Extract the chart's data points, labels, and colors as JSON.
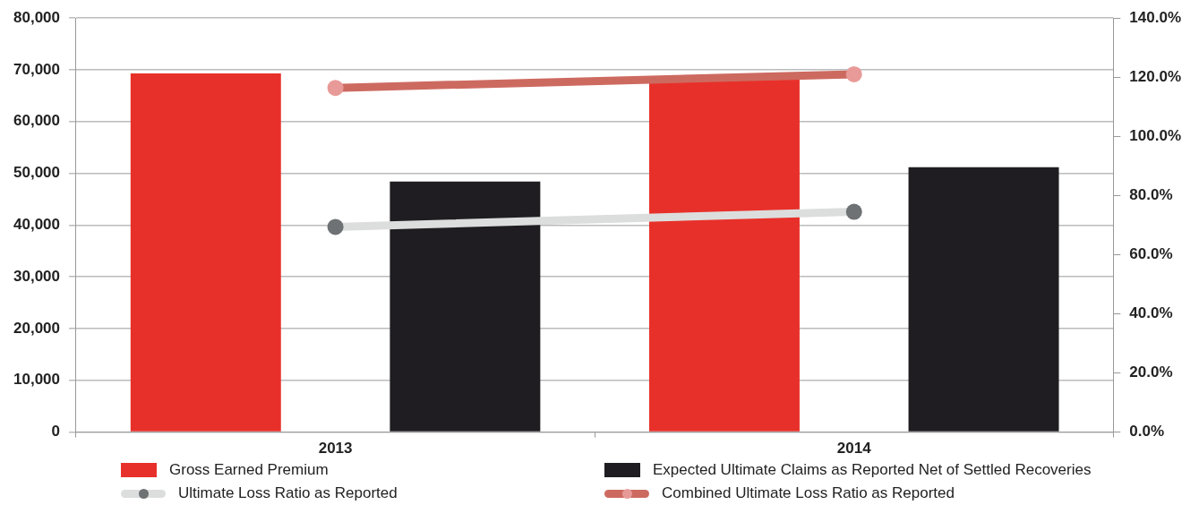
{
  "chart_data": {
    "type": "bar",
    "categories": [
      "2013",
      "2014"
    ],
    "series": [
      {
        "name": "Gross Earned Premium",
        "color": "#e8302a",
        "values": [
          69300,
          68600
        ]
      },
      {
        "name": "Expected Ultimate Claims as Reported Net of Settled Recoveries",
        "color": "#1f1d21",
        "values": [
          48400,
          51200
        ]
      },
      {
        "name": "Ultimate Loss Ratio as Reported",
        "type": "line",
        "axis": "y2",
        "color": "#dcdedd",
        "values": [
          69.4,
          74.5
        ]
      },
      {
        "name": "Combined Ultimate Loss Ratio as Reported",
        "type": "line",
        "axis": "y2",
        "color": "#cd6a60",
        "values": [
          116.4,
          121.0
        ]
      }
    ],
    "ylim": [
      0,
      80000
    ],
    "yticks": [
      {
        "value": 0,
        "label": "0"
      },
      {
        "value": 10000,
        "label": "10,000"
      },
      {
        "value": 20000,
        "label": "20,000"
      },
      {
        "value": 30000,
        "label": "30,000"
      },
      {
        "value": 40000,
        "label": "40,000"
      },
      {
        "value": 50000,
        "label": "50,000"
      },
      {
        "value": 60000,
        "label": "60,000"
      },
      {
        "value": 70000,
        "label": "70,000"
      },
      {
        "value": 80000,
        "label": "80,000"
      }
    ],
    "y2lim": [
      0,
      140
    ],
    "y2ticks": [
      {
        "value": 0,
        "label": "0.0%"
      },
      {
        "value": 20,
        "label": "20.0%"
      },
      {
        "value": 40,
        "label": "40.0%"
      },
      {
        "value": 60,
        "label": "60.0%"
      },
      {
        "value": 80,
        "label": "80.0%"
      },
      {
        "value": 100,
        "label": "100.0%"
      },
      {
        "value": 120,
        "label": "120.0%"
      },
      {
        "value": 140,
        "label": "140.0%"
      }
    ],
    "grid": "y",
    "legend": "bottom",
    "marker": "circle",
    "line_style": "solid"
  }
}
